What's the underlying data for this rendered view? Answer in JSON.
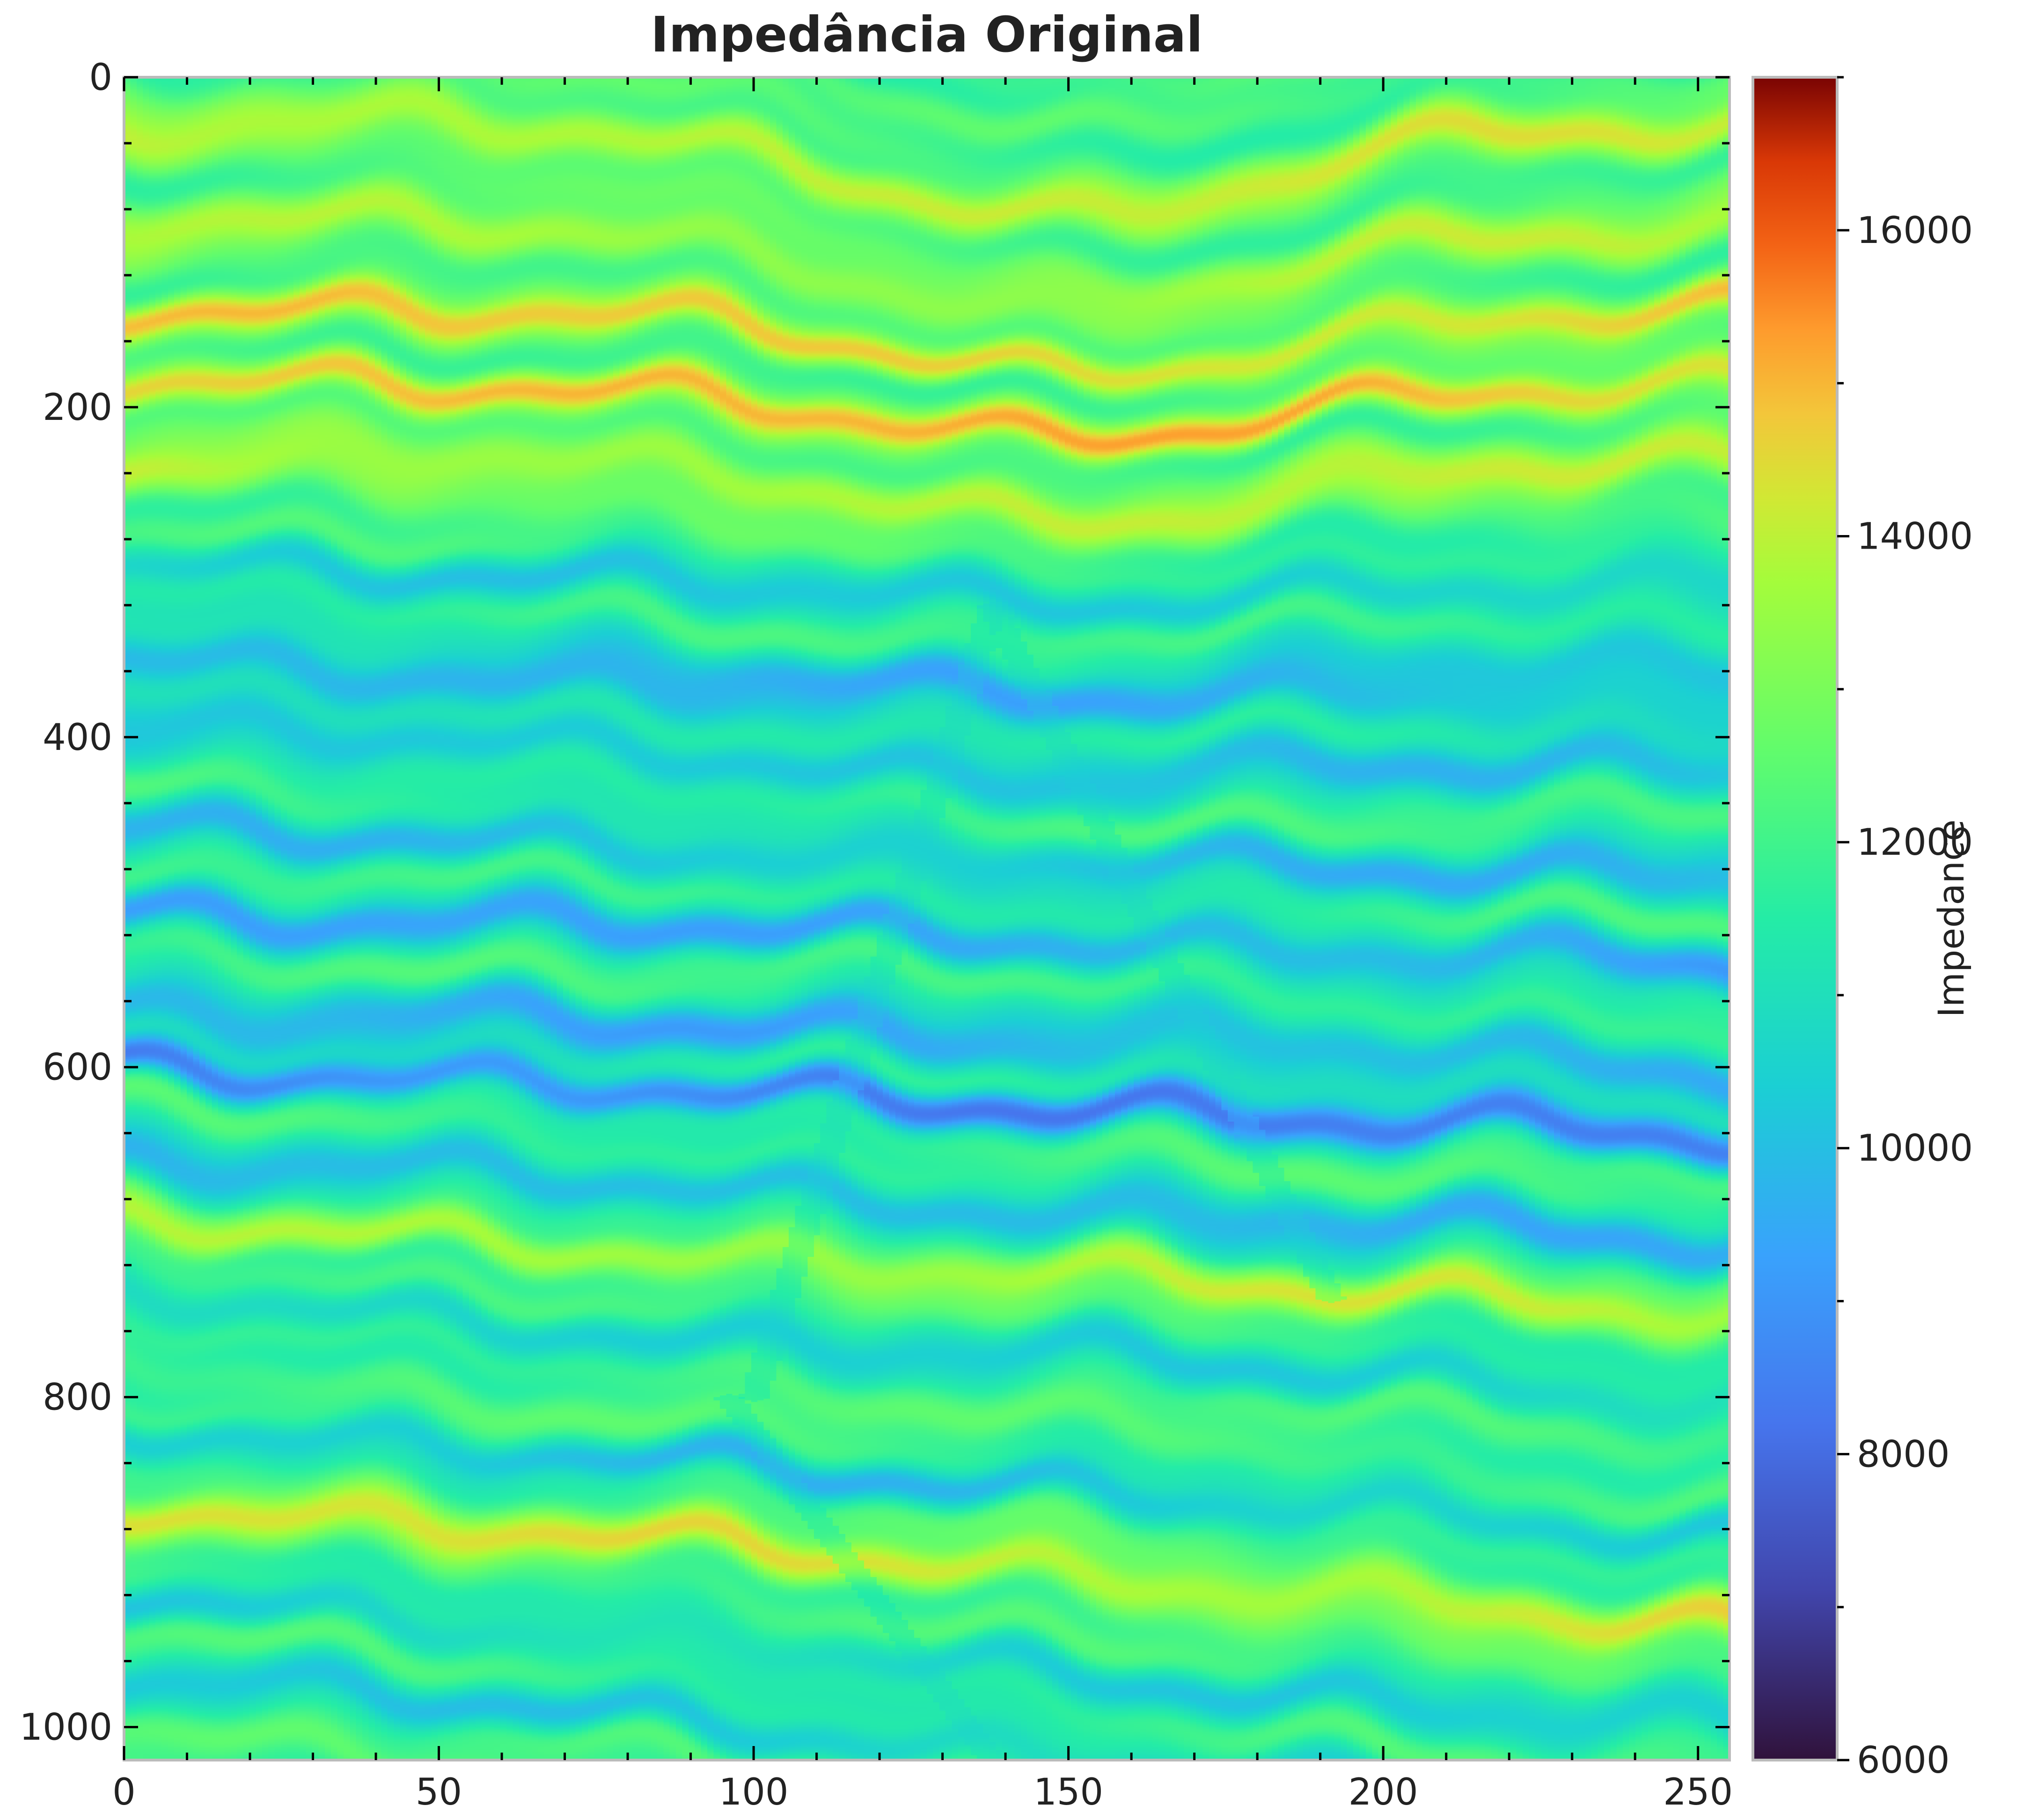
{
  "chart_data": {
    "type": "heatmap",
    "title": "Impedância Original",
    "xlabel": "",
    "ylabel": "",
    "xlim": [
      0,
      255
    ],
    "ylim": [
      1020,
      0
    ],
    "x_ticks": [
      0,
      50,
      100,
      150,
      200,
      250
    ],
    "y_ticks": [
      0,
      200,
      400,
      600,
      800,
      1000
    ],
    "colorbar": {
      "label": "Impedance",
      "range": [
        6000,
        17000
      ],
      "ticks": [
        6000,
        8000,
        10000,
        12000,
        14000,
        16000
      ],
      "colormap": "turbo"
    },
    "grid": false,
    "background_impedance": 12000,
    "layers": [
      {
        "depth": 30,
        "value": 14000,
        "width": 16
      },
      {
        "depth": 90,
        "value": 13600,
        "width": 18
      },
      {
        "depth": 140,
        "value": 14600,
        "width": 12
      },
      {
        "depth": 185,
        "value": 14900,
        "width": 12
      },
      {
        "depth": 235,
        "value": 13800,
        "width": 18
      },
      {
        "depth": 300,
        "value": 10400,
        "width": 14
      },
      {
        "depth": 360,
        "value": 9800,
        "width": 22
      },
      {
        "depth": 410,
        "value": 10200,
        "width": 18
      },
      {
        "depth": 470,
        "value": 10000,
        "width": 16
      },
      {
        "depth": 520,
        "value": 9500,
        "width": 14
      },
      {
        "depth": 580,
        "value": 9700,
        "width": 18
      },
      {
        "depth": 620,
        "value": 8600,
        "width": 12
      },
      {
        "depth": 680,
        "value": 9900,
        "width": 16
      },
      {
        "depth": 720,
        "value": 13800,
        "width": 12
      },
      {
        "depth": 770,
        "value": 10600,
        "width": 14
      },
      {
        "depth": 850,
        "value": 10200,
        "width": 12
      },
      {
        "depth": 900,
        "value": 14200,
        "width": 14
      },
      {
        "depth": 960,
        "value": 10600,
        "width": 14
      },
      {
        "depth": 1010,
        "value": 10400,
        "width": 14
      }
    ],
    "faults": [
      {
        "from": [
          138,
          320
        ],
        "to": [
          100,
          800
        ]
      },
      {
        "from": [
          138,
          320
        ],
        "to": [
          192,
          740
        ]
      },
      {
        "from": [
          96,
          800
        ],
        "to": [
          138,
          1020
        ]
      }
    ]
  }
}
